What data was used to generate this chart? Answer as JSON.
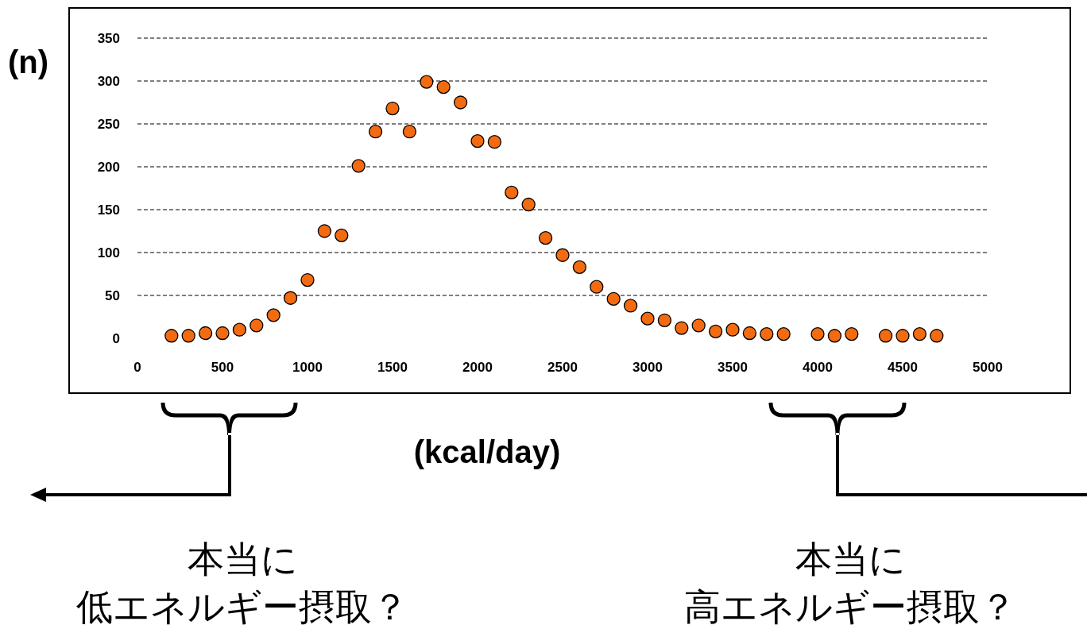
{
  "chart_data": {
    "type": "scatter",
    "x": [
      200,
      300,
      400,
      500,
      600,
      700,
      800,
      900,
      1000,
      1100,
      1200,
      1300,
      1400,
      1500,
      1600,
      1700,
      1800,
      1900,
      2000,
      2100,
      2200,
      2300,
      2400,
      2500,
      2600,
      2700,
      2800,
      2900,
      3000,
      3100,
      3200,
      3300,
      3400,
      3500,
      3600,
      3700,
      3800,
      4000,
      4100,
      4200,
      4400,
      4500,
      4600,
      4700
    ],
    "values": [
      3,
      3,
      6,
      6,
      10,
      15,
      27,
      47,
      68,
      125,
      120,
      201,
      241,
      268,
      241,
      299,
      293,
      275,
      230,
      229,
      170,
      156,
      117,
      97,
      83,
      60,
      46,
      38,
      23,
      21,
      12,
      15,
      8,
      10,
      6,
      5,
      5,
      5,
      3,
      5,
      3,
      3,
      5,
      3
    ],
    "color": "#f36b10",
    "marker": "circle",
    "xlim": [
      0,
      5000
    ],
    "ylim": [
      0,
      350
    ],
    "xticks": [
      0,
      500,
      1000,
      1500,
      2000,
      2500,
      3000,
      3500,
      4000,
      4500,
      5000
    ],
    "yticks": [
      0,
      50,
      100,
      150,
      200,
      250,
      300,
      350
    ],
    "grid": "y",
    "xlabel": "(kcal/day)",
    "ylabel": "(n)",
    "annotations": [
      "本当に",
      "低エネルギー摂取？",
      "本当に",
      "高エネルギー摂取？"
    ]
  }
}
